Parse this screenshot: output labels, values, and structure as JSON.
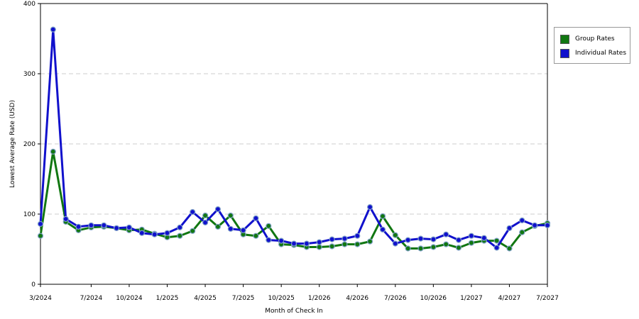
{
  "chart_data": {
    "type": "line",
    "xlabel": "Month of Check In",
    "ylabel": "Lowest Average Rate (USD)",
    "ylim": [
      0,
      400
    ],
    "yticks": [
      0,
      100,
      200,
      300,
      400
    ],
    "xticks": [
      "3/2024",
      "7/2024",
      "10/2024",
      "1/2025",
      "4/2025",
      "7/2025",
      "10/2025",
      "1/2026",
      "4/2026",
      "7/2026",
      "10/2026",
      "1/2027",
      "4/2027",
      "7/2027"
    ],
    "x": [
      "3/2024",
      "4/2024",
      "5/2024",
      "6/2024",
      "7/2024",
      "8/2024",
      "9/2024",
      "10/2024",
      "11/2024",
      "12/2024",
      "1/2025",
      "2/2025",
      "3/2025",
      "4/2025",
      "5/2025",
      "6/2025",
      "7/2025",
      "8/2025",
      "9/2025",
      "10/2025",
      "11/2025",
      "12/2025",
      "1/2026",
      "2/2026",
      "3/2026",
      "4/2026",
      "5/2026",
      "6/2026",
      "7/2026",
      "8/2026",
      "9/2026",
      "10/2026",
      "11/2026",
      "12/2026",
      "1/2027",
      "2/2027",
      "3/2027",
      "4/2027",
      "5/2027",
      "6/2027",
      "7/2027"
    ],
    "grid": "horizontal dashed",
    "legend_position": "right",
    "series": [
      {
        "name": "Group Rates",
        "color": "#117711",
        "values": [
          69,
          189,
          89,
          77,
          81,
          82,
          80,
          77,
          78,
          72,
          67,
          69,
          76,
          98,
          82,
          98,
          71,
          69,
          83,
          57,
          56,
          53,
          53,
          54,
          57,
          57,
          61,
          97,
          70,
          51,
          51,
          53,
          57,
          52,
          59,
          62,
          62,
          51,
          74,
          83,
          87
        ]
      },
      {
        "name": "Individual Rates",
        "color": "#1111cc",
        "values": [
          86,
          363,
          93,
          82,
          84,
          84,
          80,
          81,
          73,
          71,
          73,
          81,
          103,
          88,
          107,
          79,
          77,
          94,
          63,
          62,
          58,
          58,
          60,
          64,
          65,
          69,
          110,
          78,
          58,
          63,
          65,
          64,
          71,
          63,
          69,
          66,
          52,
          80,
          91,
          84,
          84
        ]
      }
    ]
  }
}
